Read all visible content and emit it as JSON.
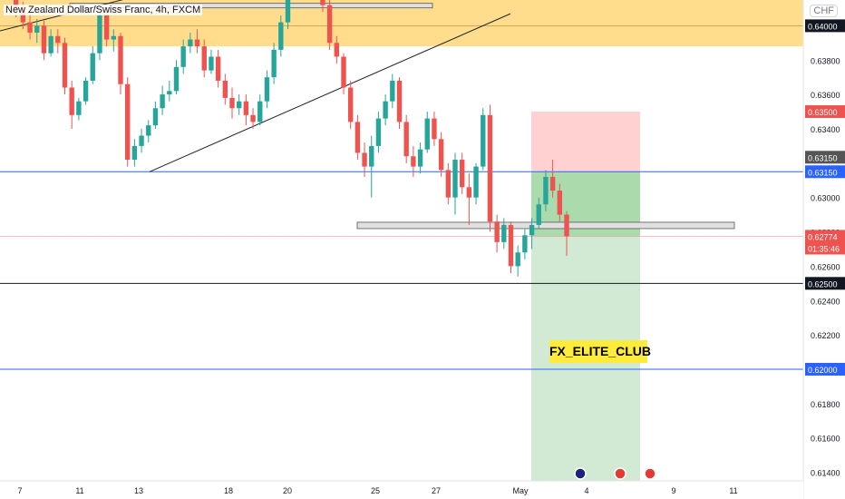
{
  "header": {
    "title": "New Zealand Dollar/Swiss Franc, 4h, FXCM",
    "currency": "CHF"
  },
  "watermark": "FX_ELITE_CLUB",
  "colors": {
    "up": "#26a69a",
    "down": "#ef5350",
    "zone": "#ffd166",
    "stop": "#ff9999",
    "target": "#a5d6a7",
    "blue": "#2962ff",
    "black": "#131722"
  },
  "chart_data": {
    "type": "candlestick",
    "ylim": [
      0.6135,
      0.6415
    ],
    "y_ticks": [
      "0.63800",
      "0.63600",
      "0.63400",
      "0.63000",
      "0.62800",
      "0.62600",
      "0.62400",
      "0.62200",
      "0.61800",
      "0.61600",
      "0.61400"
    ],
    "x_ticks": [
      "7",
      "11",
      "13",
      "18",
      "20",
      "25",
      "27",
      "May",
      "4",
      "9",
      "11"
    ],
    "price_labels": [
      {
        "text": "0.64000",
        "value": 0.64,
        "style": "black"
      },
      {
        "text": "0.63500",
        "value": 0.635,
        "style": "red"
      },
      {
        "text": "0.63150",
        "value": 0.6315,
        "style": "gray"
      },
      {
        "text": "0.63150",
        "value": 0.6315,
        "style": "blue"
      },
      {
        "text": "0.62774",
        "value": 0.62774,
        "style": "red"
      },
      {
        "text": "01:35:46",
        "value": 0.62774,
        "style": "red-sub"
      },
      {
        "text": "0.62500",
        "value": 0.625,
        "style": "black"
      },
      {
        "text": "0.62000",
        "value": 0.62,
        "style": "blue"
      }
    ],
    "levels": {
      "resistance_zone": [
        0.6388,
        0.6416
      ],
      "blue_upper": 0.6315,
      "black_lower": 0.625,
      "blue_lower": 0.62,
      "current_price": 0.62774
    },
    "position": {
      "entry": 0.6315,
      "stop": 0.635,
      "target": 0.614
    },
    "rectangles": [
      {
        "y_top": 0.6412,
        "y_bottom": 0.6411
      },
      {
        "y_top": 0.62845,
        "y_bottom": 0.62835
      }
    ],
    "candles": [
      [
        0.6428,
        0.6436,
        0.6415,
        0.642
      ],
      [
        0.642,
        0.6425,
        0.6405,
        0.641
      ],
      [
        0.641,
        0.6414,
        0.6398,
        0.6402
      ],
      [
        0.6402,
        0.6406,
        0.6392,
        0.6396
      ],
      [
        0.6396,
        0.6404,
        0.639,
        0.64
      ],
      [
        0.64,
        0.6403,
        0.638,
        0.6384
      ],
      [
        0.6384,
        0.6398,
        0.6382,
        0.6394
      ],
      [
        0.6394,
        0.6398,
        0.6384,
        0.639
      ],
      [
        0.639,
        0.6393,
        0.636,
        0.6364
      ],
      [
        0.6364,
        0.6368,
        0.634,
        0.6348
      ],
      [
        0.6348,
        0.6358,
        0.6345,
        0.6356
      ],
      [
        0.6356,
        0.637,
        0.6354,
        0.6368
      ],
      [
        0.6368,
        0.6388,
        0.6366,
        0.6384
      ],
      [
        0.6384,
        0.6412,
        0.638,
        0.6406
      ],
      [
        0.6406,
        0.641,
        0.6388,
        0.6392
      ],
      [
        0.6392,
        0.6398,
        0.6385,
        0.6394
      ],
      [
        0.6394,
        0.6396,
        0.636,
        0.6366
      ],
      [
        0.6366,
        0.637,
        0.6318,
        0.6322
      ],
      [
        0.6322,
        0.6334,
        0.6318,
        0.633
      ],
      [
        0.633,
        0.634,
        0.6326,
        0.6336
      ],
      [
        0.6336,
        0.6345,
        0.6332,
        0.6342
      ],
      [
        0.6342,
        0.6356,
        0.634,
        0.6352
      ],
      [
        0.6352,
        0.6365,
        0.6348,
        0.636
      ],
      [
        0.636,
        0.6368,
        0.6356,
        0.6362
      ],
      [
        0.6362,
        0.638,
        0.636,
        0.6376
      ],
      [
        0.6376,
        0.6392,
        0.6372,
        0.6388
      ],
      [
        0.6388,
        0.6396,
        0.6384,
        0.6392
      ],
      [
        0.6392,
        0.6398,
        0.6384,
        0.6388
      ],
      [
        0.6388,
        0.6392,
        0.637,
        0.6374
      ],
      [
        0.6374,
        0.6386,
        0.6372,
        0.6382
      ],
      [
        0.6382,
        0.6386,
        0.6364,
        0.6368
      ],
      [
        0.6368,
        0.6372,
        0.6354,
        0.6358
      ],
      [
        0.6358,
        0.6364,
        0.6346,
        0.6352
      ],
      [
        0.6352,
        0.636,
        0.6348,
        0.6356
      ],
      [
        0.6356,
        0.636,
        0.6342,
        0.6348
      ],
      [
        0.6348,
        0.6352,
        0.634,
        0.6344
      ],
      [
        0.6344,
        0.636,
        0.6342,
        0.6356
      ],
      [
        0.6356,
        0.6374,
        0.6352,
        0.637
      ],
      [
        0.637,
        0.639,
        0.6366,
        0.6386
      ],
      [
        0.6386,
        0.6406,
        0.6382,
        0.6402
      ],
      [
        0.6402,
        0.6426,
        0.6398,
        0.642
      ],
      [
        0.642,
        0.6438,
        0.6416,
        0.6432
      ],
      [
        0.6432,
        0.644,
        0.6424,
        0.6436
      ],
      [
        0.6436,
        0.6442,
        0.6428,
        0.6438
      ],
      [
        0.6438,
        0.644,
        0.6418,
        0.6422
      ],
      [
        0.6422,
        0.6424,
        0.6408,
        0.6412
      ],
      [
        0.6412,
        0.6416,
        0.6386,
        0.639
      ],
      [
        0.639,
        0.6394,
        0.6378,
        0.6382
      ],
      [
        0.6382,
        0.6384,
        0.636,
        0.6364
      ],
      [
        0.6364,
        0.6368,
        0.634,
        0.6344
      ],
      [
        0.6344,
        0.6348,
        0.6322,
        0.6326
      ],
      [
        0.6326,
        0.6332,
        0.6312,
        0.6318
      ],
      [
        0.6318,
        0.6336,
        0.63,
        0.633
      ],
      [
        0.633,
        0.635,
        0.6326,
        0.6346
      ],
      [
        0.6346,
        0.636,
        0.6342,
        0.6356
      ],
      [
        0.6356,
        0.6372,
        0.6352,
        0.6368
      ],
      [
        0.6368,
        0.637,
        0.634,
        0.6344
      ],
      [
        0.6344,
        0.6348,
        0.632,
        0.6324
      ],
      [
        0.6324,
        0.633,
        0.6312,
        0.6318
      ],
      [
        0.6318,
        0.6332,
        0.6314,
        0.6328
      ],
      [
        0.6328,
        0.635,
        0.6326,
        0.6346
      ],
      [
        0.6346,
        0.635,
        0.633,
        0.6334
      ],
      [
        0.6334,
        0.6338,
        0.6312,
        0.6316
      ],
      [
        0.6316,
        0.632,
        0.6296,
        0.63
      ],
      [
        0.63,
        0.6326,
        0.629,
        0.6322
      ],
      [
        0.6322,
        0.6326,
        0.6302,
        0.6306
      ],
      [
        0.6306,
        0.6314,
        0.6284,
        0.63
      ],
      [
        0.63,
        0.632,
        0.6296,
        0.6318
      ],
      [
        0.6318,
        0.6352,
        0.6316,
        0.6348
      ],
      [
        0.6348,
        0.6354,
        0.628,
        0.6286
      ],
      [
        0.6286,
        0.629,
        0.6268,
        0.6274
      ],
      [
        0.6274,
        0.6288,
        0.627,
        0.6284
      ],
      [
        0.6284,
        0.6286,
        0.6256,
        0.626
      ],
      [
        0.626,
        0.6272,
        0.6254,
        0.6268
      ],
      [
        0.6268,
        0.6282,
        0.6264,
        0.6278
      ],
      [
        0.6278,
        0.6288,
        0.627,
        0.6284
      ],
      [
        0.6284,
        0.63,
        0.6282,
        0.6296
      ],
      [
        0.6296,
        0.6316,
        0.6292,
        0.6312
      ],
      [
        0.6312,
        0.6322,
        0.63,
        0.6304
      ],
      [
        0.6304,
        0.6308,
        0.6286,
        0.629
      ],
      [
        0.629,
        0.6292,
        0.6266,
        0.62774
      ]
    ]
  }
}
